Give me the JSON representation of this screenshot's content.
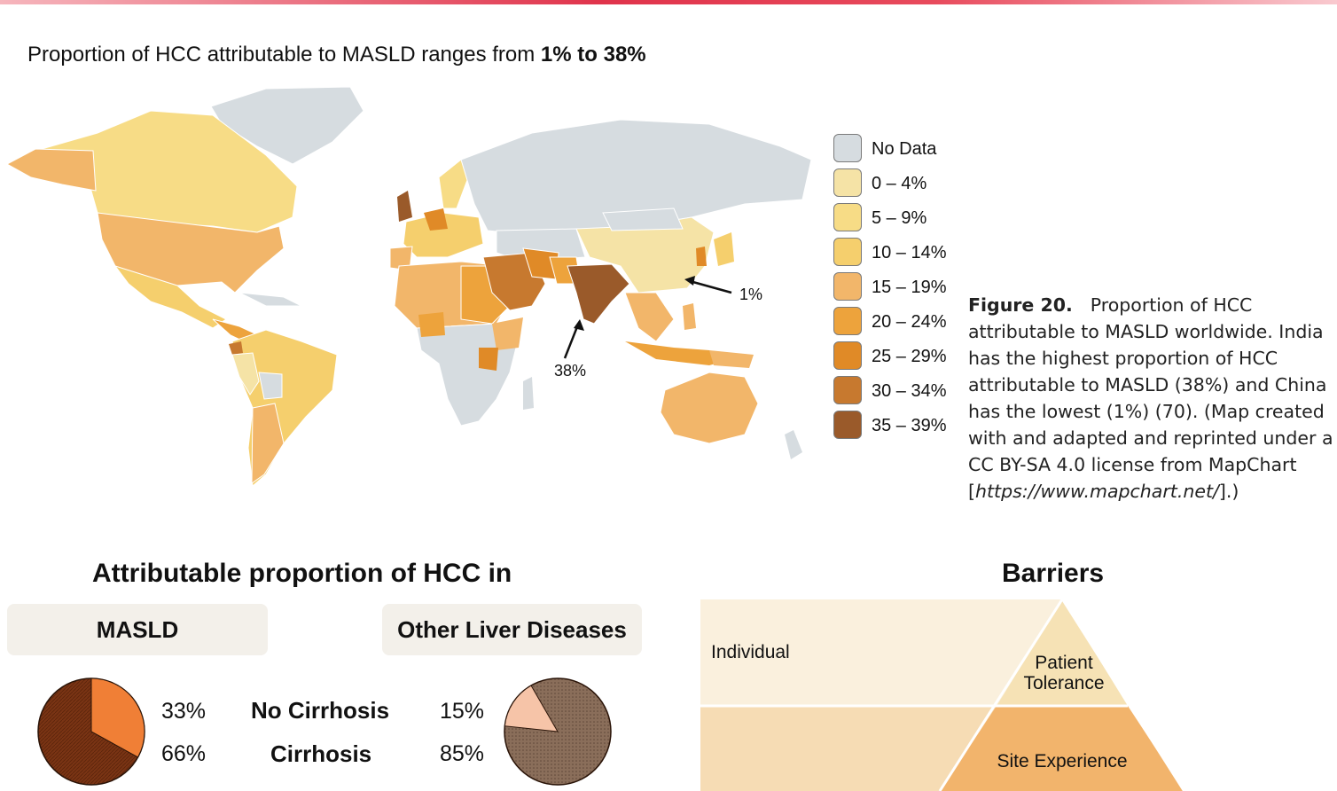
{
  "map_section": {
    "title_prefix": "Proportion of HCC attributable to MASLD ranges from ",
    "title_bold": "1% to 38%",
    "annotations": {
      "china": "1%",
      "india": "38%"
    },
    "legend": [
      {
        "label": "No Data",
        "color": "#d6dce0"
      },
      {
        "label": "0 – 4%",
        "color": "#f5e3a6"
      },
      {
        "label": "5 – 9%",
        "color": "#f7dc86"
      },
      {
        "label": "10 – 14%",
        "color": "#f5cf6d"
      },
      {
        "label": "15 – 19%",
        "color": "#f2b66a"
      },
      {
        "label": "20 – 24%",
        "color": "#eda33c"
      },
      {
        "label": "25 – 29%",
        "color": "#e08a27"
      },
      {
        "label": "30 – 34%",
        "color": "#c7792f"
      },
      {
        "label": "35 – 39%",
        "color": "#9a5a2a"
      }
    ]
  },
  "caption": {
    "figure_label": "Figure 20.",
    "text": "Proportion of HCC attributable to MASLD worldwide. India has the highest proportion of HCC attributable to MASLD (38%) and China has the lowest (1%) (70). (Map created with and adapted and reprinted under a CC BY-SA 4.0 license from MapChart [",
    "link": "https://www.mapchart.net/",
    "suffix": "].)"
  },
  "attributable": {
    "title": "Attributable proportion of HCC in",
    "masld_label": "MASLD",
    "other_label": "Other Liver Diseases",
    "rows": [
      {
        "label": "No Cirrhosis",
        "masld": "33%",
        "other": "15%"
      },
      {
        "label": "Cirrhosis",
        "masld": "66%",
        "other": "85%"
      }
    ],
    "colors": {
      "masld_no_cirrhosis": "#f07f36",
      "masld_cirrhosis": "#7a3414",
      "other_no_cirrhosis": "#f6c4a8",
      "other_cirrhosis": "#7e6350"
    }
  },
  "barriers": {
    "title": "Barriers",
    "individual": "Individual",
    "patient_tolerance": "Patient Tolerance",
    "site_experience": "Site Experience",
    "colors": {
      "band1": "#faf0dd",
      "band2": "#f6dcb4",
      "tri1": "#f6e2b5",
      "tri2": "#f2b46c"
    }
  }
}
